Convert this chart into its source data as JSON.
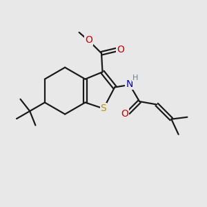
{
  "bg_color": "#e8e8e8",
  "bond_color": "#1a1a1a",
  "S_color": "#b8960c",
  "N_color": "#0000cc",
  "O_color": "#cc0000",
  "H_color": "#708090",
  "line_width": 1.6,
  "figsize": [
    3.0,
    3.0
  ],
  "dpi": 100,
  "xlim": [
    0,
    10
  ],
  "ylim": [
    0,
    10
  ]
}
